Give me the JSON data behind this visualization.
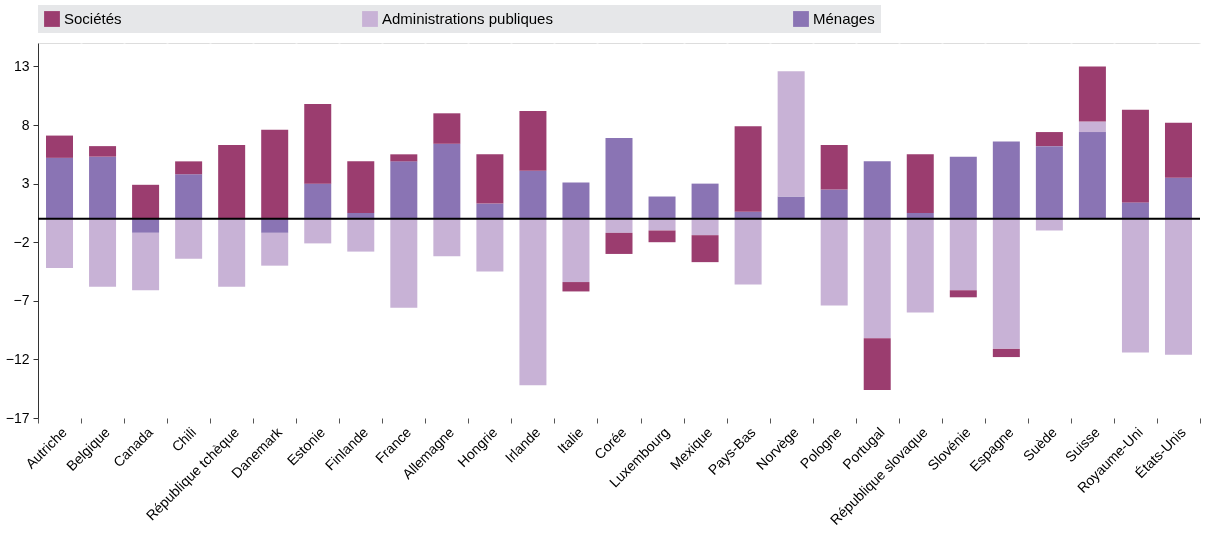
{
  "chart_data": {
    "type": "bar",
    "stacked": true,
    "categories": [
      "Autriche",
      "Belgique",
      "Canada",
      "Chili",
      "République tchèque",
      "Danemark",
      "Estonie",
      "Finlande",
      "France",
      "Allemagne",
      "Hongrie",
      "Irlande",
      "Italie",
      "Corée",
      "Luxembourg",
      "Mexique",
      "Pays-Bas",
      "Norvège",
      "Pologne",
      "Portugal",
      "République slovaque",
      "Slovénie",
      "Espagne",
      "Suède",
      "Suisse",
      "Royaume-Uni",
      "États-Unis"
    ],
    "series": [
      {
        "name": "Ménages",
        "color": "#8a74b4",
        "values": [
          5.2,
          5.3,
          -1.2,
          3.8,
          null,
          -1.2,
          3.0,
          0.5,
          4.9,
          6.4,
          1.3,
          4.1,
          3.1,
          6.9,
          1.9,
          3.0,
          0.6,
          1.9,
          2.5,
          4.9,
          0.5,
          5.3,
          6.6,
          6.2,
          7.4,
          1.4,
          3.5
        ]
      },
      {
        "name": "Administrations publiques",
        "color": "#c8b2d6",
        "values": [
          -4.2,
          -5.8,
          -4.9,
          -3.4,
          -5.8,
          -2.8,
          -2.1,
          -2.8,
          -7.6,
          -3.2,
          -4.5,
          -14.2,
          -5.4,
          -1.2,
          -1.0,
          -1.4,
          -5.6,
          10.7,
          -7.4,
          -10.2,
          -8.0,
          -6.1,
          -11.1,
          -1.0,
          0.9,
          -11.4,
          -11.6
        ]
      },
      {
        "name": "Sociétés",
        "color": "#9b3d6f",
        "values": [
          1.9,
          0.9,
          2.9,
          1.1,
          6.3,
          7.6,
          6.8,
          4.4,
          0.6,
          2.6,
          4.2,
          5.1,
          -0.8,
          -1.8,
          -1.0,
          -2.3,
          7.3,
          null,
          3.8,
          -4.4,
          5.0,
          -0.6,
          -0.7,
          1.2,
          4.7,
          7.9,
          4.7
        ]
      }
    ],
    "ylim": [
      -17,
      15
    ],
    "yticks": [
      13,
      8,
      3,
      -2,
      -7,
      -12,
      -17
    ],
    "ref_lines": [
      {
        "axis": "y",
        "value": 0,
        "color": "#000000"
      }
    ],
    "grid": true,
    "legend": "top"
  }
}
